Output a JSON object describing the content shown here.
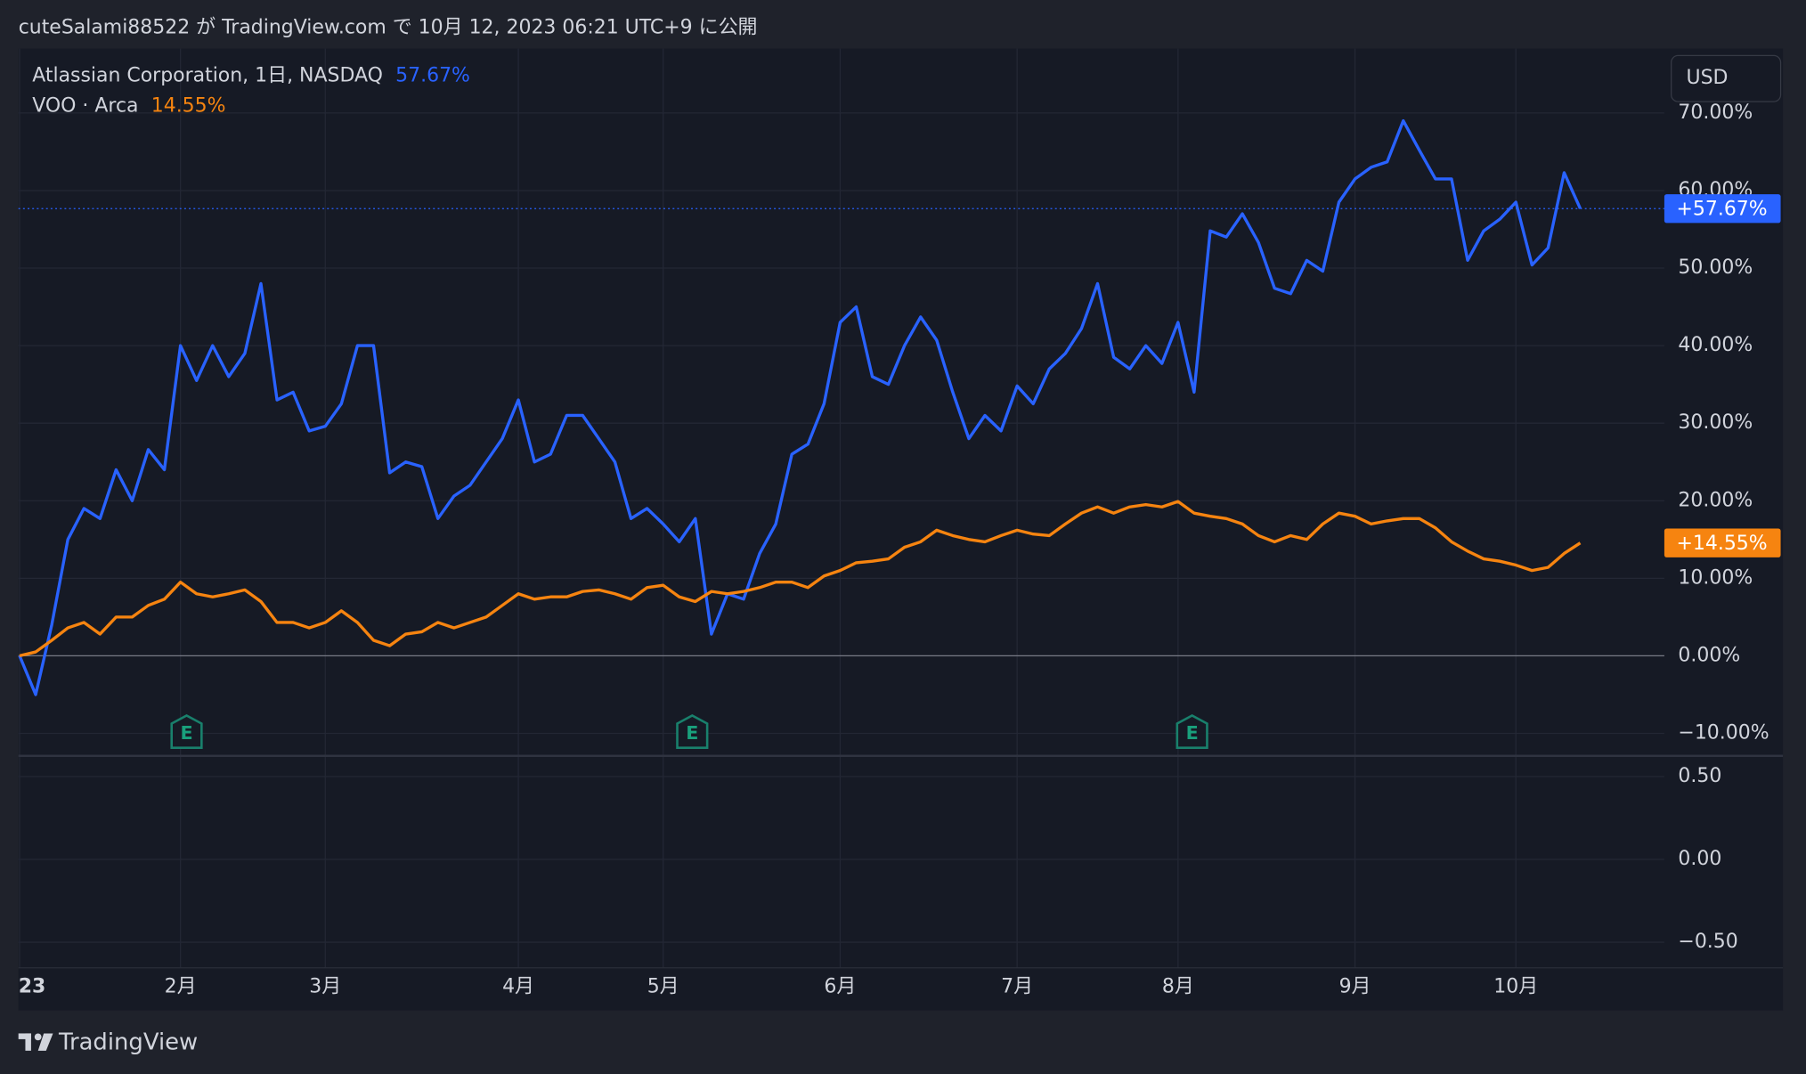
{
  "header": {
    "title": "cuteSalami88522 が TradingView.com で 10月 12, 2023 06:21 UTC+9 に公開"
  },
  "footer": {
    "brand": "TradingView"
  },
  "currency_button": "USD",
  "earnings_markers": [
    "E",
    "E",
    "E"
  ],
  "chart_data": {
    "type": "line",
    "categories": [
      "23",
      null,
      null,
      null,
      null,
      null,
      null,
      null,
      null,
      null,
      "2月",
      null,
      null,
      null,
      null,
      null,
      null,
      null,
      null,
      "3月",
      null,
      null,
      null,
      null,
      null,
      null,
      null,
      null,
      null,
      null,
      null,
      "4月",
      null,
      null,
      null,
      null,
      null,
      null,
      null,
      null,
      "5月",
      null,
      null,
      null,
      null,
      null,
      null,
      null,
      null,
      null,
      null,
      "6月",
      null,
      null,
      null,
      null,
      null,
      null,
      null,
      null,
      null,
      null,
      "7月",
      null,
      null,
      null,
      null,
      null,
      null,
      null,
      null,
      null,
      "8月",
      null,
      null,
      null,
      null,
      null,
      null,
      null,
      null,
      null,
      null,
      "9月",
      null,
      null,
      null,
      null,
      null,
      null,
      null,
      null,
      null,
      "10月",
      null,
      null,
      null,
      null
    ],
    "series": [
      {
        "name": "Atlassian Corporation, 1日, NASDAQ",
        "legend_value": "57.67%",
        "tag": "+57.67%",
        "color": "#2962ff",
        "values": [
          0,
          -5,
          4,
          15,
          19,
          17.7,
          24,
          20,
          26.6,
          24,
          40,
          35.5,
          40,
          36,
          39,
          48,
          33,
          34,
          29,
          29.6,
          32.5,
          40,
          40,
          23.6,
          25,
          24.4,
          17.7,
          20.6,
          22,
          25,
          28,
          33,
          25,
          26,
          31,
          31,
          28,
          25,
          17.7,
          19,
          17,
          14.7,
          17.7,
          2.8,
          8,
          7.3,
          13.2,
          17,
          26,
          27.3,
          32.5,
          43,
          45,
          36,
          35,
          40,
          43.7,
          40.7,
          34,
          28,
          31,
          29,
          34.8,
          32.5,
          37,
          39,
          42.2,
          48,
          38.5,
          37,
          40,
          37.7,
          43,
          34,
          54.8,
          54,
          57,
          53.3,
          47.4,
          46.7,
          51,
          49.6,
          58.5,
          61.5,
          63,
          63.7,
          69,
          65.2,
          61.5,
          61.5,
          51,
          54.8,
          56.3,
          58.5,
          50.4,
          52.6,
          62.3,
          57.67
        ]
      },
      {
        "name": "VOO · Arca",
        "legend_value": "14.55%",
        "tag": "+14.55%",
        "color": "#f68410",
        "values": [
          0,
          0.5,
          2,
          3.6,
          4.3,
          2.8,
          5,
          5,
          6.5,
          7.3,
          9.5,
          8,
          7.6,
          8,
          8.5,
          7,
          4.3,
          4.3,
          3.6,
          4.3,
          5.8,
          4.3,
          2,
          1.3,
          2.8,
          3.1,
          4.3,
          3.6,
          4.3,
          5,
          6.5,
          8,
          7.3,
          7.6,
          7.6,
          8.3,
          8.5,
          8,
          7.3,
          8.8,
          9.1,
          7.6,
          7,
          8.3,
          8,
          8.3,
          8.8,
          9.5,
          9.5,
          8.8,
          10.3,
          11,
          12,
          12.2,
          12.5,
          14,
          14.7,
          16.2,
          15.5,
          15,
          14.7,
          15.5,
          16.2,
          15.7,
          15.5,
          17,
          18.4,
          19.2,
          18.4,
          19.2,
          19.5,
          19.2,
          19.9,
          18.4,
          18,
          17.7,
          17,
          15.5,
          14.7,
          15.5,
          15,
          17,
          18.4,
          18,
          17,
          17.4,
          17.7,
          17.7,
          16.5,
          14.7,
          13.5,
          12.5,
          12.2,
          11.7,
          11,
          11.4,
          13.2,
          14.55
        ]
      }
    ],
    "ylim": [
      -12.9,
      78.3
    ],
    "yticks": [
      {
        "value": -10,
        "label": "−10.00%"
      },
      {
        "value": 0,
        "label": "0.00%"
      },
      {
        "value": 10,
        "label": "10.00%"
      },
      {
        "value": 20,
        "label": "20.00%"
      },
      {
        "value": 30,
        "label": "30.00%"
      },
      {
        "value": 40,
        "label": "40.00%"
      },
      {
        "value": 50,
        "label": "50.00%"
      },
      {
        "value": 60,
        "label": "60.00%"
      },
      {
        "value": 70,
        "label": "70.00%"
      }
    ],
    "pane2_ylim": [
      -0.64,
      0.625
    ],
    "pane2_yticks": [
      {
        "value": -0.5,
        "label": "−0.50"
      },
      {
        "value": 0,
        "label": "0.00"
      },
      {
        "value": 0.5,
        "label": "0.50"
      }
    ],
    "grid": true
  }
}
